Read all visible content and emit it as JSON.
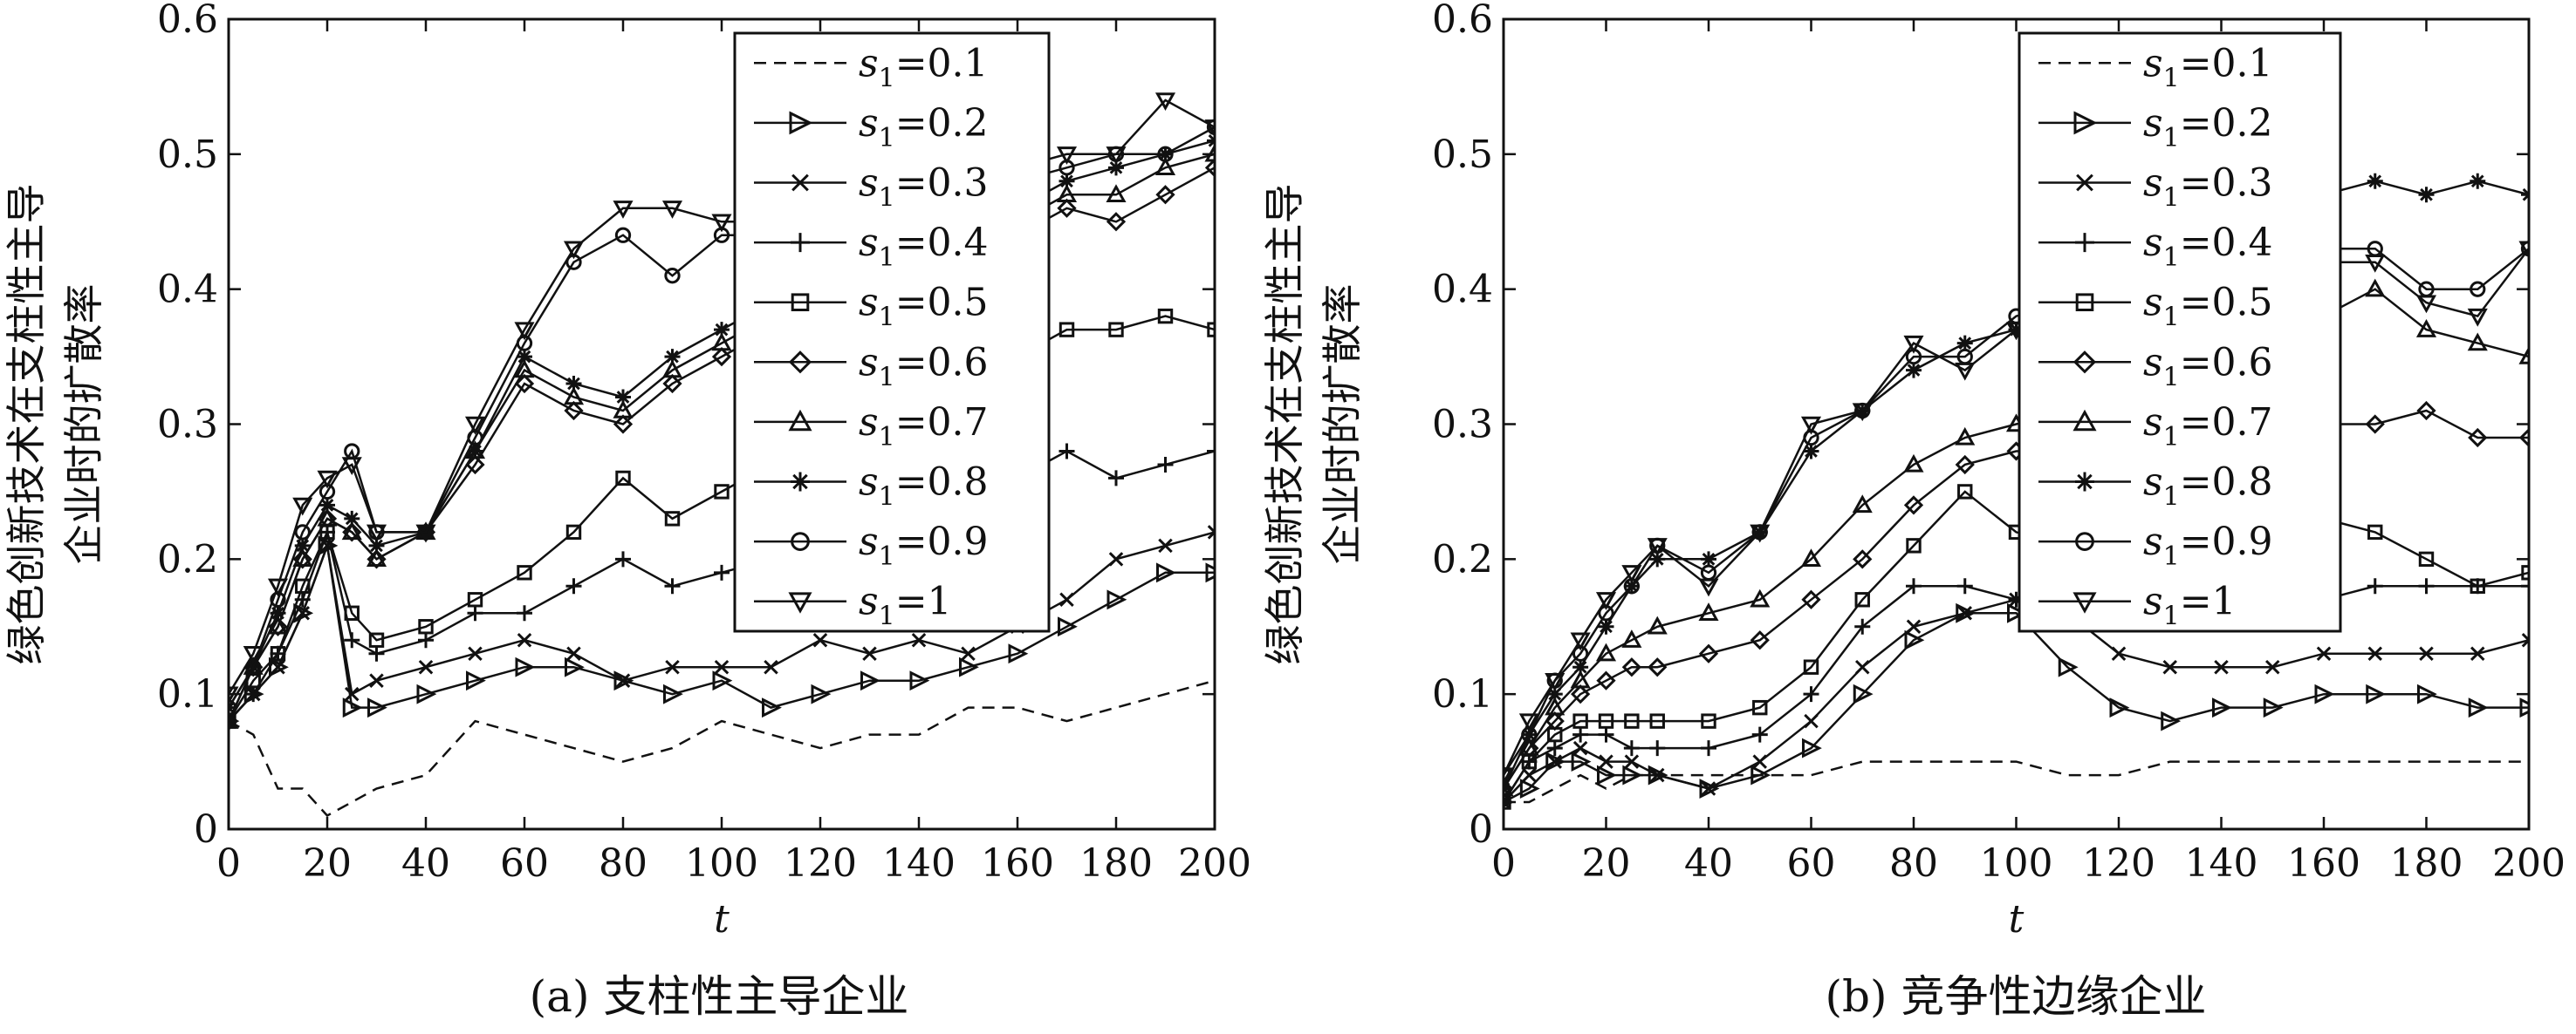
{
  "figure": {
    "captions": [
      "(a) 支柱性主导企业",
      "(b) 竞争性边缘企业"
    ]
  },
  "legend": {
    "var_main": "s",
    "var_sub": "1",
    "labels": [
      "=0.1",
      "=0.2",
      "=0.3",
      "=0.4",
      "=0.5",
      "=0.6",
      "=0.7",
      "=0.8",
      "=0.9",
      "=1"
    ],
    "markers": [
      "dash",
      "triangle-right",
      "x",
      "plus",
      "square",
      "diamond",
      "triangle-up",
      "asterisk",
      "circle",
      "triangle-down"
    ]
  },
  "chart_data": [
    {
      "type": "line",
      "title": "",
      "caption": "(a) 支柱性主导企业",
      "xlabel": "t",
      "ylabel_lines": [
        "绿色创新技术在支柱性主导",
        "企业时的扩散率"
      ],
      "xlim": [
        0,
        200
      ],
      "ylim": [
        0,
        0.6
      ],
      "xticks": [
        "0",
        "20",
        "40",
        "60",
        "80",
        "100",
        "120",
        "140",
        "160",
        "180",
        "200"
      ],
      "yticks": [
        "0",
        "0.1",
        "0.2",
        "0.3",
        "0.4",
        "0.5",
        "0.6"
      ],
      "grid": false,
      "legend_position": "top-right",
      "x": [
        0,
        5,
        10,
        15,
        20,
        25,
        30,
        40,
        50,
        60,
        70,
        80,
        90,
        100,
        110,
        120,
        130,
        140,
        150,
        160,
        170,
        180,
        190,
        200
      ],
      "series": [
        {
          "name": "s1=0.1",
          "values": [
            0.08,
            0.07,
            0.03,
            0.03,
            0.01,
            0.02,
            0.03,
            0.04,
            0.08,
            0.07,
            0.06,
            0.05,
            0.06,
            0.08,
            0.07,
            0.06,
            0.07,
            0.07,
            0.09,
            0.09,
            0.08,
            0.09,
            0.1,
            0.11
          ]
        },
        {
          "name": "s1=0.2",
          "values": [
            0.08,
            0.1,
            0.12,
            0.16,
            0.21,
            0.09,
            0.09,
            0.1,
            0.11,
            0.12,
            0.12,
            0.11,
            0.1,
            0.11,
            0.09,
            0.1,
            0.11,
            0.11,
            0.12,
            0.13,
            0.15,
            0.17,
            0.19,
            0.19
          ]
        },
        {
          "name": "s1=0.3",
          "values": [
            0.08,
            0.1,
            0.12,
            0.16,
            0.21,
            0.1,
            0.11,
            0.12,
            0.13,
            0.14,
            0.13,
            0.11,
            0.12,
            0.12,
            0.12,
            0.14,
            0.13,
            0.14,
            0.13,
            0.15,
            0.17,
            0.2,
            0.21,
            0.22
          ]
        },
        {
          "name": "s1=0.4",
          "values": [
            0.08,
            0.1,
            0.13,
            0.17,
            0.22,
            0.14,
            0.13,
            0.14,
            0.16,
            0.16,
            0.18,
            0.2,
            0.18,
            0.19,
            0.2,
            0.22,
            0.22,
            0.23,
            0.25,
            0.26,
            0.28,
            0.26,
            0.27,
            0.28
          ]
        },
        {
          "name": "s1=0.5",
          "values": [
            0.08,
            0.11,
            0.13,
            0.18,
            0.22,
            0.16,
            0.14,
            0.15,
            0.17,
            0.19,
            0.22,
            0.26,
            0.23,
            0.25,
            0.27,
            0.29,
            0.31,
            0.32,
            0.33,
            0.35,
            0.37,
            0.37,
            0.38,
            0.37
          ]
        },
        {
          "name": "s1=0.6",
          "values": [
            0.08,
            0.12,
            0.15,
            0.2,
            0.23,
            0.22,
            0.2,
            0.22,
            0.27,
            0.33,
            0.31,
            0.3,
            0.33,
            0.35,
            0.37,
            0.39,
            0.41,
            0.42,
            0.43,
            0.44,
            0.46,
            0.45,
            0.47,
            0.49
          ]
        },
        {
          "name": "s1=0.7",
          "values": [
            0.08,
            0.12,
            0.15,
            0.2,
            0.23,
            0.22,
            0.2,
            0.22,
            0.28,
            0.34,
            0.32,
            0.31,
            0.34,
            0.36,
            0.38,
            0.4,
            0.42,
            0.43,
            0.44,
            0.45,
            0.47,
            0.47,
            0.49,
            0.5
          ]
        },
        {
          "name": "s1=0.8",
          "values": [
            0.09,
            0.12,
            0.16,
            0.21,
            0.24,
            0.23,
            0.21,
            0.22,
            0.28,
            0.35,
            0.33,
            0.32,
            0.35,
            0.37,
            0.39,
            0.41,
            0.43,
            0.44,
            0.45,
            0.46,
            0.48,
            0.49,
            0.5,
            0.51
          ]
        },
        {
          "name": "s1=0.9",
          "values": [
            0.09,
            0.12,
            0.17,
            0.22,
            0.25,
            0.28,
            0.22,
            0.22,
            0.29,
            0.36,
            0.42,
            0.44,
            0.41,
            0.44,
            0.44,
            0.46,
            0.47,
            0.47,
            0.48,
            0.48,
            0.49,
            0.5,
            0.5,
            0.52
          ]
        },
        {
          "name": "s1=1",
          "values": [
            0.1,
            0.13,
            0.18,
            0.24,
            0.26,
            0.27,
            0.22,
            0.22,
            0.3,
            0.37,
            0.43,
            0.46,
            0.46,
            0.45,
            0.45,
            0.47,
            0.48,
            0.48,
            0.49,
            0.49,
            0.5,
            0.5,
            0.54,
            0.52
          ]
        }
      ]
    },
    {
      "type": "line",
      "title": "",
      "caption": "(b) 竞争性边缘企业",
      "xlabel": "t",
      "ylabel_lines": [
        "绿色创新技术在支柱性主导",
        "企业时的扩散率"
      ],
      "xlim": [
        0,
        200
      ],
      "ylim": [
        0,
        0.6
      ],
      "xticks": [
        "0",
        "20",
        "40",
        "60",
        "80",
        "100",
        "120",
        "140",
        "160",
        "180",
        "200"
      ],
      "yticks": [
        "0",
        "0.1",
        "0.2",
        "0.3",
        "0.4",
        "0.5",
        "0.6"
      ],
      "grid": false,
      "legend_position": "top-right",
      "x": [
        0,
        5,
        10,
        15,
        20,
        25,
        30,
        40,
        50,
        60,
        70,
        80,
        90,
        100,
        110,
        120,
        130,
        140,
        150,
        160,
        170,
        180,
        190,
        200
      ],
      "series": [
        {
          "name": "s1=0.1",
          "values": [
            0.02,
            0.02,
            0.03,
            0.04,
            0.03,
            0.04,
            0.04,
            0.04,
            0.04,
            0.04,
            0.05,
            0.05,
            0.05,
            0.05,
            0.04,
            0.04,
            0.05,
            0.05,
            0.05,
            0.05,
            0.05,
            0.05,
            0.05,
            0.05
          ]
        },
        {
          "name": "s1=0.2",
          "values": [
            0.02,
            0.03,
            0.05,
            0.05,
            0.04,
            0.04,
            0.04,
            0.03,
            0.04,
            0.06,
            0.1,
            0.14,
            0.16,
            0.16,
            0.12,
            0.09,
            0.08,
            0.09,
            0.09,
            0.1,
            0.1,
            0.1,
            0.09,
            0.09
          ]
        },
        {
          "name": "s1=0.3",
          "values": [
            0.02,
            0.04,
            0.05,
            0.06,
            0.05,
            0.05,
            0.04,
            0.03,
            0.05,
            0.08,
            0.12,
            0.15,
            0.16,
            0.17,
            0.16,
            0.13,
            0.12,
            0.12,
            0.12,
            0.13,
            0.13,
            0.13,
            0.13,
            0.14
          ]
        },
        {
          "name": "s1=0.4",
          "values": [
            0.02,
            0.05,
            0.06,
            0.07,
            0.07,
            0.06,
            0.06,
            0.06,
            0.07,
            0.1,
            0.15,
            0.18,
            0.18,
            0.17,
            0.17,
            0.17,
            0.17,
            0.17,
            0.17,
            0.17,
            0.18,
            0.18,
            0.18,
            0.18
          ]
        },
        {
          "name": "s1=0.5",
          "values": [
            0.02,
            0.05,
            0.07,
            0.08,
            0.08,
            0.08,
            0.08,
            0.08,
            0.09,
            0.12,
            0.17,
            0.21,
            0.25,
            0.22,
            0.21,
            0.2,
            0.21,
            0.21,
            0.22,
            0.23,
            0.22,
            0.2,
            0.18,
            0.19
          ]
        },
        {
          "name": "s1=0.6",
          "values": [
            0.03,
            0.06,
            0.08,
            0.1,
            0.11,
            0.12,
            0.12,
            0.13,
            0.14,
            0.17,
            0.2,
            0.24,
            0.27,
            0.28,
            0.28,
            0.29,
            0.29,
            0.29,
            0.29,
            0.3,
            0.3,
            0.31,
            0.29,
            0.29
          ]
        },
        {
          "name": "s1=0.7",
          "values": [
            0.03,
            0.06,
            0.09,
            0.11,
            0.13,
            0.14,
            0.15,
            0.16,
            0.17,
            0.2,
            0.24,
            0.27,
            0.29,
            0.3,
            0.31,
            0.32,
            0.33,
            0.34,
            0.36,
            0.38,
            0.4,
            0.37,
            0.36,
            0.35
          ]
        },
        {
          "name": "s1=0.8",
          "values": [
            0.03,
            0.07,
            0.1,
            0.12,
            0.15,
            0.18,
            0.2,
            0.2,
            0.22,
            0.28,
            0.31,
            0.34,
            0.36,
            0.37,
            0.4,
            0.42,
            0.43,
            0.44,
            0.45,
            0.47,
            0.48,
            0.47,
            0.48,
            0.47
          ]
        },
        {
          "name": "s1=0.9",
          "values": [
            0.04,
            0.07,
            0.11,
            0.13,
            0.16,
            0.18,
            0.21,
            0.19,
            0.22,
            0.29,
            0.31,
            0.35,
            0.35,
            0.38,
            0.39,
            0.4,
            0.41,
            0.41,
            0.42,
            0.43,
            0.43,
            0.4,
            0.4,
            0.43
          ]
        },
        {
          "name": "s1=1",
          "values": [
            0.04,
            0.08,
            0.11,
            0.14,
            0.17,
            0.19,
            0.21,
            0.18,
            0.22,
            0.3,
            0.31,
            0.36,
            0.34,
            0.37,
            0.38,
            0.39,
            0.4,
            0.4,
            0.41,
            0.42,
            0.42,
            0.39,
            0.38,
            0.43
          ]
        }
      ]
    }
  ]
}
